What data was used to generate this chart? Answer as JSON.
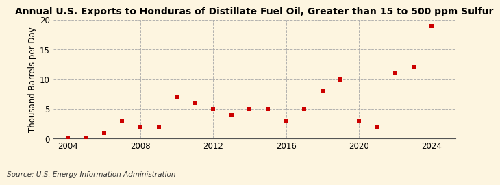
{
  "title": "Annual U.S. Exports to Honduras of Distillate Fuel Oil, Greater than 15 to 500 ppm Sulfur",
  "ylabel": "Thousand Barrels per Day",
  "source_text": "Source: U.S. Energy Information Administration",
  "years": [
    2004,
    2005,
    2006,
    2007,
    2008,
    2009,
    2010,
    2011,
    2012,
    2013,
    2014,
    2015,
    2016,
    2017,
    2018,
    2019,
    2020,
    2021,
    2022,
    2023,
    2024
  ],
  "values": [
    0.0,
    0.03,
    1.0,
    3.0,
    2.0,
    2.0,
    7.0,
    6.0,
    5.0,
    4.0,
    5.0,
    5.0,
    3.0,
    5.0,
    8.0,
    10.0,
    3.0,
    2.0,
    11.0,
    12.0,
    19.0
  ],
  "marker_color": "#cc0000",
  "marker_size": 4,
  "background_color": "#fdf5e0",
  "grid_color": "#aaaaaa",
  "ylim": [
    0,
    20
  ],
  "yticks": [
    0,
    5,
    10,
    15,
    20
  ],
  "xticks": [
    2004,
    2008,
    2012,
    2016,
    2020,
    2024
  ],
  "title_fontsize": 10,
  "ylabel_fontsize": 8.5,
  "source_fontsize": 7.5,
  "tick_fontsize": 8.5
}
